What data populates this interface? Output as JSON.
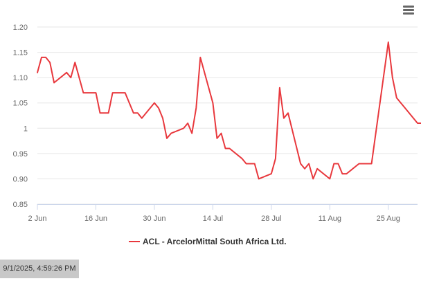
{
  "chart_data": {
    "type": "line",
    "title": "",
    "xlabel": "",
    "ylabel": "",
    "ylim": [
      0.85,
      1.2
    ],
    "yticks": [
      "1.20",
      "1.15",
      "1.10",
      "1.05",
      "1",
      "0.95",
      "0.90",
      "0.85"
    ],
    "xticks": [
      {
        "date": "2025-06-02",
        "label": "2 Jun"
      },
      {
        "date": "2025-06-16",
        "label": "16 Jun"
      },
      {
        "date": "2025-06-30",
        "label": "30 Jun"
      },
      {
        "date": "2025-07-14",
        "label": "14 Jul"
      },
      {
        "date": "2025-07-28",
        "label": "28 Jul"
      },
      {
        "date": "2025-08-11",
        "label": "11 Aug"
      },
      {
        "date": "2025-08-25",
        "label": "25 Aug"
      }
    ],
    "xlim": [
      "2025-06-02",
      "2025-09-01"
    ],
    "grid": true,
    "legend_position": "bottom-center",
    "series": [
      {
        "name": "ACL - ArcelorMittal South Africa Ltd.",
        "color": "#e8383d",
        "points": [
          [
            "2025-06-02",
            1.11
          ],
          [
            "2025-06-03",
            1.14
          ],
          [
            "2025-06-04",
            1.14
          ],
          [
            "2025-06-05",
            1.13
          ],
          [
            "2025-06-06",
            1.09
          ],
          [
            "2025-06-09",
            1.11
          ],
          [
            "2025-06-10",
            1.1
          ],
          [
            "2025-06-11",
            1.13
          ],
          [
            "2025-06-13",
            1.07
          ],
          [
            "2025-06-16",
            1.07
          ],
          [
            "2025-06-17",
            1.03
          ],
          [
            "2025-06-19",
            1.03
          ],
          [
            "2025-06-20",
            1.07
          ],
          [
            "2025-06-23",
            1.07
          ],
          [
            "2025-06-25",
            1.03
          ],
          [
            "2025-06-26",
            1.03
          ],
          [
            "2025-06-27",
            1.02
          ],
          [
            "2025-06-30",
            1.05
          ],
          [
            "2025-07-01",
            1.04
          ],
          [
            "2025-07-02",
            1.02
          ],
          [
            "2025-07-03",
            0.98
          ],
          [
            "2025-07-04",
            0.99
          ],
          [
            "2025-07-07",
            1.0
          ],
          [
            "2025-07-08",
            1.01
          ],
          [
            "2025-07-09",
            0.99
          ],
          [
            "2025-07-10",
            1.04
          ],
          [
            "2025-07-11",
            1.14
          ],
          [
            "2025-07-14",
            1.05
          ],
          [
            "2025-07-15",
            0.98
          ],
          [
            "2025-07-16",
            0.99
          ],
          [
            "2025-07-17",
            0.96
          ],
          [
            "2025-07-18",
            0.96
          ],
          [
            "2025-07-21",
            0.94
          ],
          [
            "2025-07-22",
            0.93
          ],
          [
            "2025-07-24",
            0.93
          ],
          [
            "2025-07-25",
            0.9
          ],
          [
            "2025-07-28",
            0.91
          ],
          [
            "2025-07-29",
            0.94
          ],
          [
            "2025-07-30",
            1.08
          ],
          [
            "2025-07-31",
            1.02
          ],
          [
            "2025-08-01",
            1.03
          ],
          [
            "2025-08-04",
            0.93
          ],
          [
            "2025-08-05",
            0.92
          ],
          [
            "2025-08-06",
            0.93
          ],
          [
            "2025-08-07",
            0.9
          ],
          [
            "2025-08-08",
            0.92
          ],
          [
            "2025-08-11",
            0.9
          ],
          [
            "2025-08-12",
            0.93
          ],
          [
            "2025-08-13",
            0.93
          ],
          [
            "2025-08-14",
            0.91
          ],
          [
            "2025-08-15",
            0.91
          ],
          [
            "2025-08-18",
            0.93
          ],
          [
            "2025-08-21",
            0.93
          ],
          [
            "2025-08-25",
            1.17
          ],
          [
            "2025-08-26",
            1.1
          ],
          [
            "2025-08-27",
            1.06
          ],
          [
            "2025-08-29",
            1.04
          ],
          [
            "2025-09-01",
            1.01
          ],
          [
            "2025-09-02",
            1.01
          ]
        ]
      }
    ]
  },
  "footer": {
    "timestamp": "9/1/2025, 4:59:26 PM"
  },
  "toolbar": {
    "menu_icon": "hamburger-menu-icon"
  }
}
